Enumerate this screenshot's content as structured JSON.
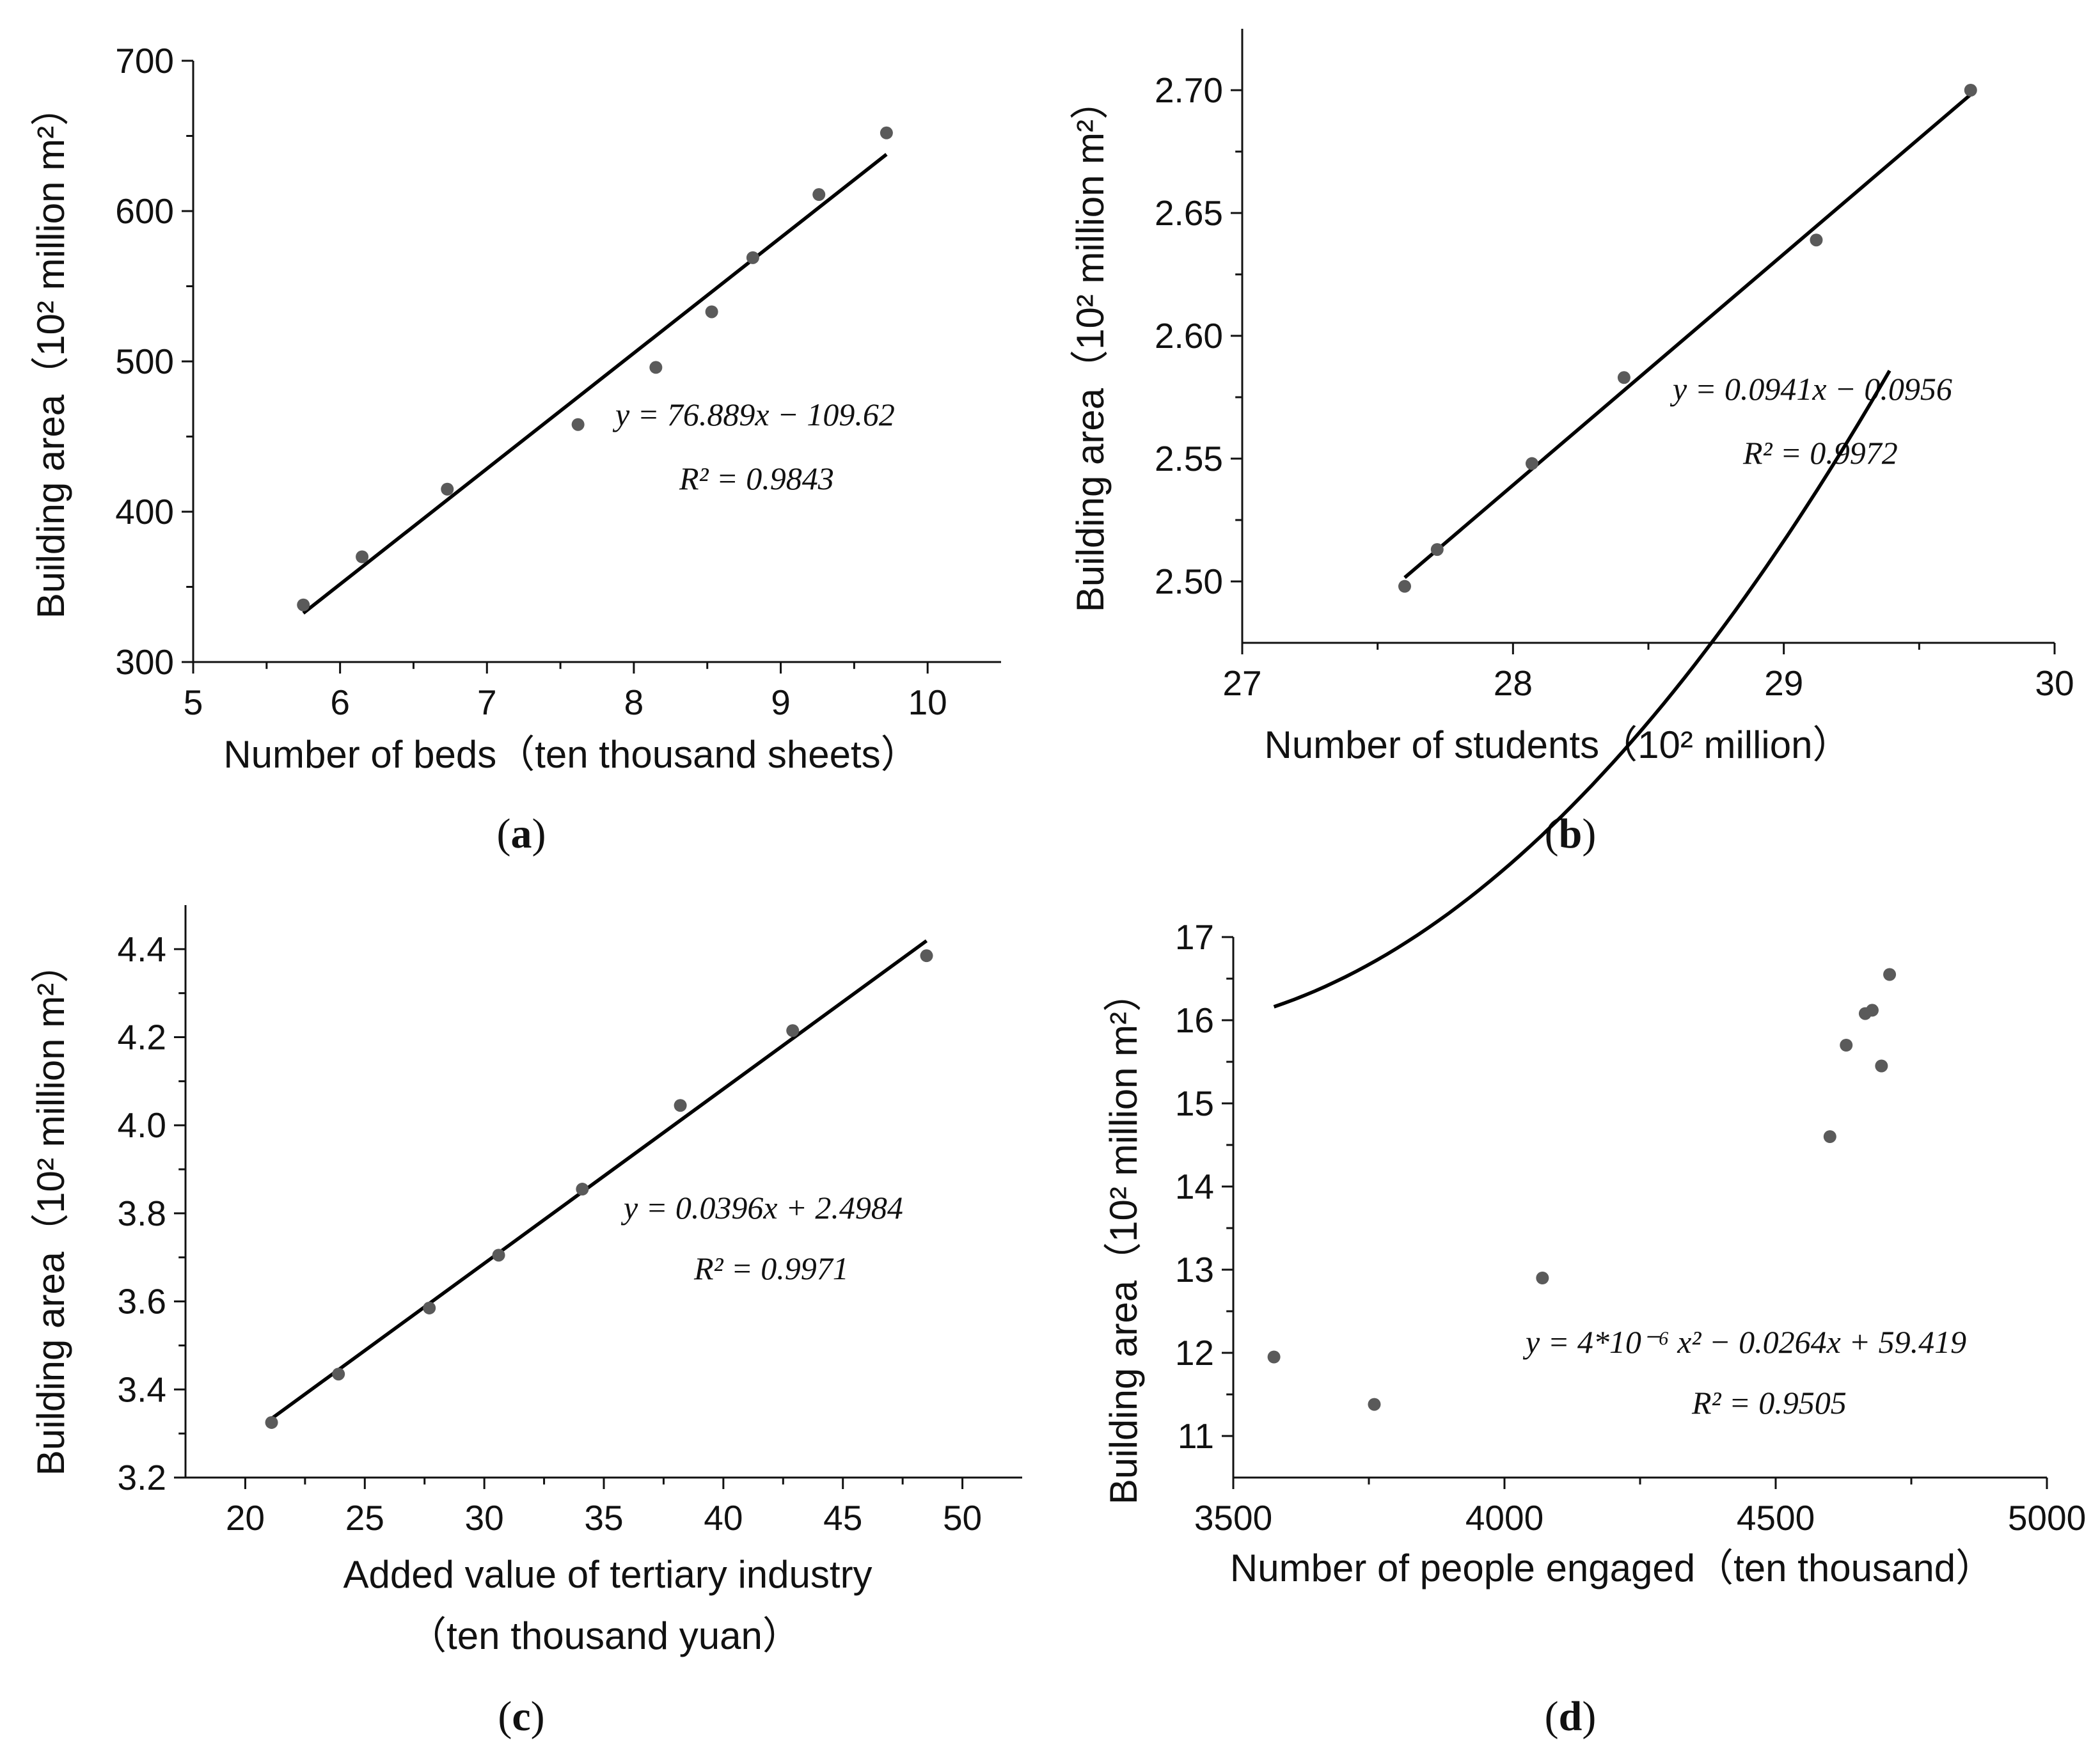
{
  "chart_data": [
    {
      "id": "a",
      "type": "scatter",
      "panel_label": "a",
      "xlabel": "Number of beds（ten thousand sheets）",
      "ylabel": "Building area（10² million m²）",
      "xlim": [
        5,
        10.5
      ],
      "ylim": [
        300,
        700
      ],
      "xticks": [
        5,
        6,
        7,
        8,
        9,
        10
      ],
      "yticks": [
        300,
        400,
        500,
        600,
        700
      ],
      "xtick_labels": [
        "5",
        "6",
        "7",
        "8",
        "9",
        "10"
      ],
      "ytick_labels": [
        "300",
        "400",
        "500",
        "600",
        "700"
      ],
      "points": {
        "x": [
          5.75,
          6.15,
          6.73,
          7.62,
          8.15,
          8.53,
          8.81,
          9.26,
          9.72
        ],
        "y": [
          338,
          370,
          415,
          458,
          496,
          533,
          569,
          611,
          652
        ]
      },
      "fit": {
        "kind": "linear",
        "coef": [
          76.889,
          -109.62
        ],
        "x_range": [
          5.75,
          9.72
        ]
      },
      "equation": "y = 76.889x − 109.62",
      "r2": "R² = 0.9843"
    },
    {
      "id": "b",
      "type": "scatter",
      "panel_label": "b",
      "xlabel": "Number of students（10² million）",
      "ylabel": "Building area（10² million m²）",
      "xlim": [
        27,
        30
      ],
      "ylim": [
        2.475,
        2.725
      ],
      "xticks": [
        27,
        28,
        29,
        30
      ],
      "yticks": [
        2.5,
        2.55,
        2.6,
        2.65,
        2.7
      ],
      "xtick_labels": [
        "27",
        "28",
        "29",
        "30"
      ],
      "ytick_labels": [
        "2.50",
        "2.55",
        "2.60",
        "2.65",
        "2.70"
      ],
      "points": {
        "x": [
          27.6,
          27.72,
          28.07,
          28.41,
          29.12,
          29.69
        ],
        "y": [
          2.498,
          2.513,
          2.548,
          2.583,
          2.639,
          2.7
        ]
      },
      "fit": {
        "kind": "linear",
        "coef": [
          0.0941,
          -0.0956
        ],
        "x_range": [
          27.6,
          29.69
        ]
      },
      "equation": "y = 0.0941x − 0.0956",
      "r2": "R² = 0.9972"
    },
    {
      "id": "c",
      "type": "scatter",
      "panel_label": "c",
      "xlabel": "Added value of tertiary industry",
      "xlabel_line2": "（ten thousand yuan）",
      "ylabel": "Building area（10² million m²）",
      "xlim": [
        17.5,
        52.5
      ],
      "ylim": [
        3.2,
        4.5
      ],
      "xticks": [
        20,
        25,
        30,
        35,
        40,
        45,
        50
      ],
      "yticks": [
        3.2,
        3.4,
        3.6,
        3.8,
        4.0,
        4.2,
        4.4
      ],
      "xtick_labels": [
        "20",
        "25",
        "30",
        "35",
        "40",
        "45",
        "50"
      ],
      "ytick_labels": [
        "3.2",
        "3.4",
        "3.6",
        "3.8",
        "4.0",
        "4.2",
        "4.4"
      ],
      "points": {
        "x": [
          21.1,
          23.9,
          27.7,
          30.6,
          34.1,
          38.2,
          42.9,
          48.5
        ],
        "y": [
          3.325,
          3.435,
          3.585,
          3.705,
          3.855,
          4.045,
          4.215,
          4.385
        ]
      },
      "fit": {
        "kind": "linear",
        "coef": [
          0.0396,
          2.4984
        ],
        "x_range": [
          21.1,
          48.5
        ]
      },
      "equation": "y = 0.0396x + 2.4984",
      "r2": "R² = 0.9971"
    },
    {
      "id": "d",
      "type": "scatter",
      "panel_label": "d",
      "xlabel": "Number of people engaged（ten thousand）",
      "ylabel": "Building area（10² million m²）",
      "xlim": [
        3500,
        5000
      ],
      "ylim": [
        10.5,
        17
      ],
      "xticks": [
        3500,
        4000,
        4500,
        5000
      ],
      "yticks": [
        11,
        12,
        13,
        14,
        15,
        16,
        17
      ],
      "xtick_labels": [
        "3500",
        "4000",
        "4500",
        "5000"
      ],
      "ytick_labels": [
        "11",
        "12",
        "13",
        "14",
        "15",
        "16",
        "17"
      ],
      "points": {
        "x": [
          3575,
          3760,
          4070,
          4600,
          4630,
          4665,
          4678,
          4695,
          4710
        ],
        "y": [
          11.95,
          11.38,
          12.9,
          14.6,
          15.7,
          16.08,
          16.12,
          15.45,
          16.55
        ]
      },
      "fit": {
        "kind": "quadratic",
        "coef": [
          4e-06,
          -0.0264,
          59.419
        ],
        "x_range": [
          3575,
          4710
        ]
      },
      "equation": "y = 4*10⁻⁶ x² − 0.0264x + 59.419",
      "r2": "R² = 0.9505"
    }
  ]
}
